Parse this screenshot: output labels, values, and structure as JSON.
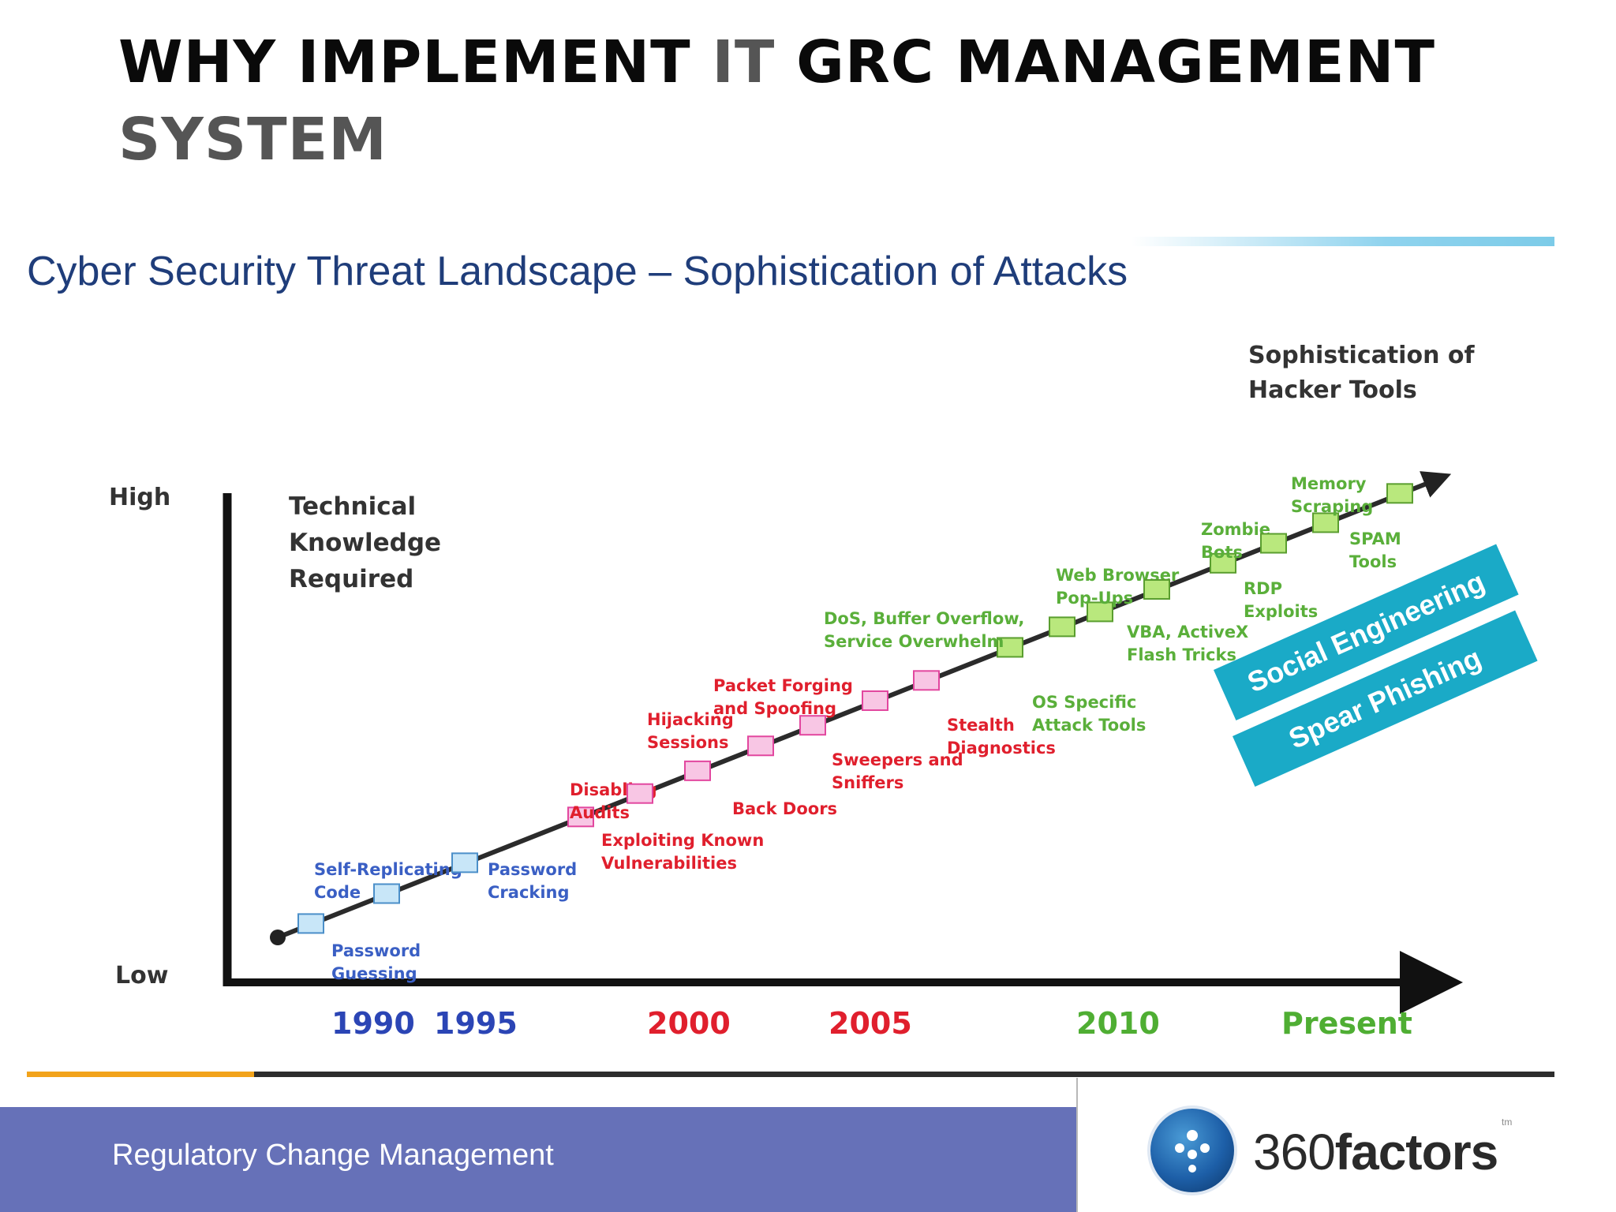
{
  "slide": {
    "title_part1": "WHY IMPLEMENT ",
    "title_part2": "IT",
    "title_part3": " GRC MANAGEMENT",
    "title_part4": "SYSTEM"
  },
  "figure": {
    "heading": "Cyber Security Threat Landscape – Sophistication of Attacks",
    "y_high": "High",
    "y_low": "Low",
    "y_axis_label": [
      "Technical",
      "Knowledge",
      "Required"
    ],
    "trend_label": [
      "Sophistication of",
      "Hacker Tools"
    ],
    "years": [
      {
        "label": "1990",
        "color": "#2b45b5"
      },
      {
        "label": "1995",
        "color": "#2b45b5"
      },
      {
        "label": "2000",
        "color": "#e01f2d"
      },
      {
        "label": "2005",
        "color": "#e01f2d"
      },
      {
        "label": "2010",
        "color": "#4fae33"
      },
      {
        "label": "Present",
        "color": "#4fae33"
      }
    ],
    "threats": [
      {
        "lines": [
          "Password",
          "Guessing"
        ],
        "era": "blue"
      },
      {
        "lines": [
          "Self-Replicating",
          "Code"
        ],
        "era": "blue"
      },
      {
        "lines": [
          "Password",
          "Cracking"
        ],
        "era": "blue"
      },
      {
        "lines": [
          "Disabling",
          "Audits"
        ],
        "era": "red"
      },
      {
        "lines": [
          "Exploiting Known",
          "Vulnerabilities"
        ],
        "era": "red"
      },
      {
        "lines": [
          "Back Doors"
        ],
        "era": "red"
      },
      {
        "lines": [
          "Hijacking",
          "Sessions"
        ],
        "era": "red"
      },
      {
        "lines": [
          "Sweepers and",
          "Sniffers"
        ],
        "era": "red"
      },
      {
        "lines": [
          "Packet Forging",
          "and Spoofing"
        ],
        "era": "red"
      },
      {
        "lines": [
          "Stealth",
          "Diagnostics"
        ],
        "era": "red"
      },
      {
        "lines": [
          "DoS, Buffer Overflow,",
          "Service Overwhelm"
        ],
        "era": "green"
      },
      {
        "lines": [
          "OS Specific",
          "Attack Tools"
        ],
        "era": "green"
      },
      {
        "lines": [
          "Web Browser",
          "Pop-Ups"
        ],
        "era": "green"
      },
      {
        "lines": [
          "VBA, ActiveX",
          "Flash Tricks"
        ],
        "era": "green"
      },
      {
        "lines": [
          "Zombie",
          "Bots"
        ],
        "era": "green"
      },
      {
        "lines": [
          "RDP",
          "Exploits"
        ],
        "era": "green"
      },
      {
        "lines": [
          "Memory",
          "Scraping"
        ],
        "era": "green"
      },
      {
        "lines": [
          "SPAM",
          "Tools"
        ],
        "era": "green"
      }
    ],
    "banners": [
      "Social Engineering",
      "Spear Phishing"
    ],
    "colors": {
      "blue_text": "#3a5fc4",
      "blue_box": "#c8e6f8",
      "blue_stroke": "#4b8fc9",
      "red_text": "#e01f2d",
      "red_box": "#f8c6e4",
      "red_stroke": "#e2479f",
      "green_text": "#5aaf3a",
      "green_box": "#b9e87d",
      "green_stroke": "#5a9e2f",
      "banner": "#1aaac7"
    }
  },
  "footer": {
    "text": "Regulatory Change Management",
    "logo_part1": "360",
    "logo_part2": "factors",
    "logo_tm": "tm"
  }
}
